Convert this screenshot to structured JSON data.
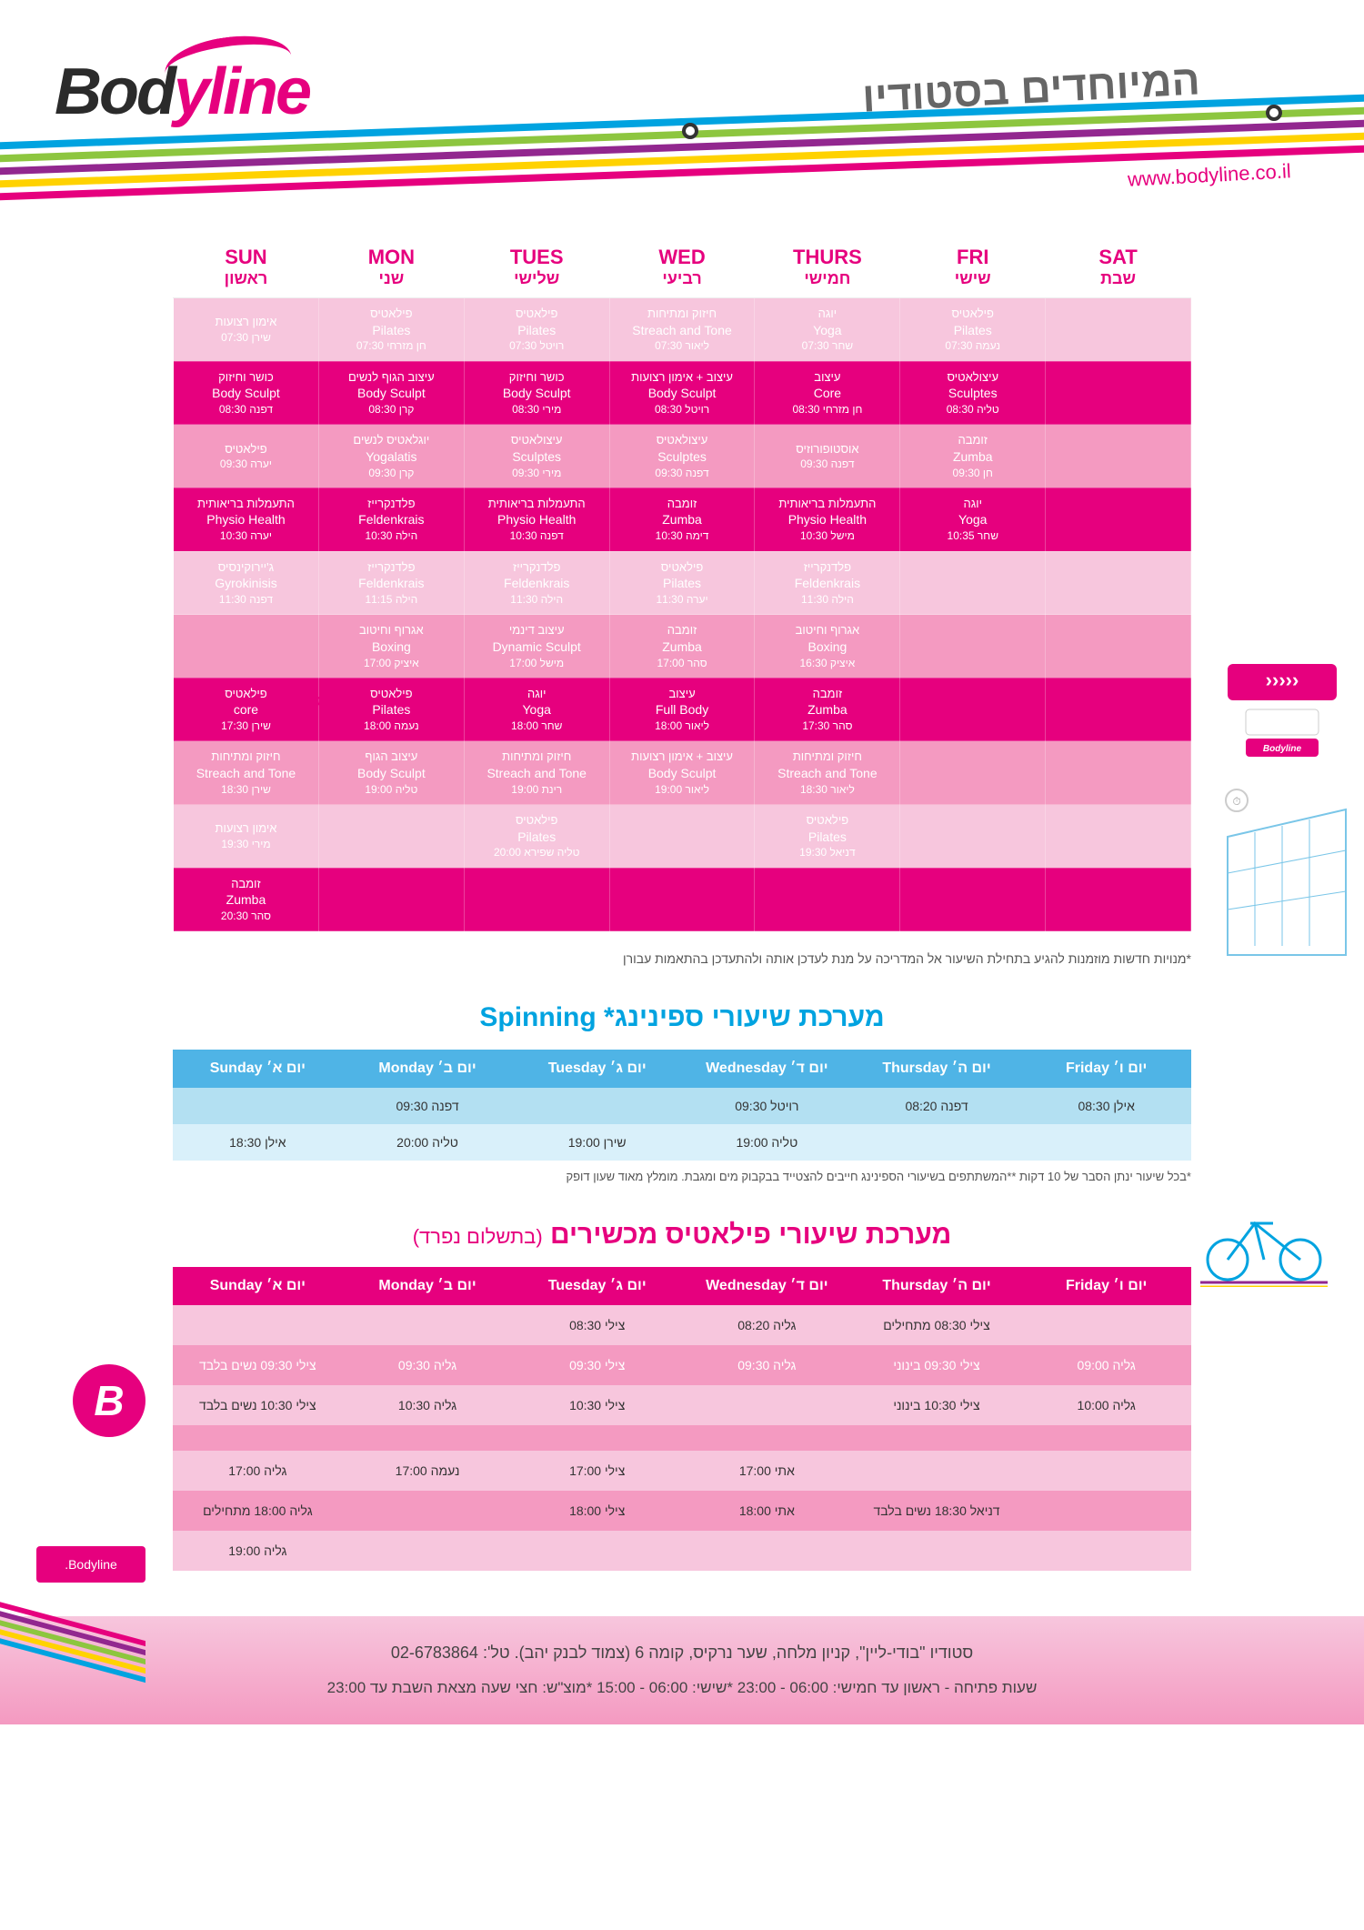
{
  "header": {
    "logo_text_1": "Bod",
    "logo_text_2": "yline",
    "title": "המיוחדים בסטודיו",
    "website": "www.bodyline.co.il",
    "stripe_colors": [
      "#00a3e0",
      "#8dc63f",
      "#92278f",
      "#ffd200",
      "#e6007e"
    ]
  },
  "schedule": {
    "days": [
      {
        "en": "SAT",
        "he": "שבת"
      },
      {
        "en": "FRI",
        "he": "שישי"
      },
      {
        "en": "THURS",
        "he": "חמישי"
      },
      {
        "en": "WED",
        "he": "רביעי"
      },
      {
        "en": "TUES",
        "he": "שלישי"
      },
      {
        "en": "MON",
        "he": "שני"
      },
      {
        "en": "SUN",
        "he": "ראשון"
      }
    ],
    "rows": [
      [
        null,
        {
          "a": "פילאטיס",
          "b": "Pilates",
          "c": "נעמה 07:30"
        },
        {
          "a": "יוגה",
          "b": "Yoga",
          "c": "שחר 07:30"
        },
        {
          "a": "חיזוק ומתיחות",
          "b": "Streach and Tone",
          "c": "ליאור 07:30"
        },
        {
          "a": "פילאטיס",
          "b": "Pilates",
          "c": "רויטל 07:30"
        },
        {
          "a": "פילאטיס",
          "b": "Pilates",
          "c": "חן מזרחי 07:30"
        },
        {
          "a": "אימון רצועות",
          "b": "",
          "c": "שירן 07:30"
        }
      ],
      [
        null,
        {
          "a": "עיצולאטיס",
          "b": "Sculptes",
          "c": "טליה 08:30"
        },
        {
          "a": "עיצוב",
          "b": "Core",
          "c": "חן מזרחי 08:30"
        },
        {
          "a": "עיצוב + אימון רצועות",
          "b": "Body Sculpt",
          "c": "רויטל 08:30"
        },
        {
          "a": "כושר וחיזוק",
          "b": "Body Sculpt",
          "c": "מירי 08:30"
        },
        {
          "a": "עיצוב הגוף לנשים",
          "b": "Body Sculpt",
          "c": "קרן 08:30"
        },
        {
          "a": "כושר וחיזוק",
          "b": "Body Sculpt",
          "c": "דפנה 08:30"
        }
      ],
      [
        null,
        {
          "a": "זומבה",
          "b": "Zumba",
          "c": "חן 09:30"
        },
        {
          "a": "אוסטופורוזיס",
          "b": "",
          "c": "דפנה 09:30"
        },
        {
          "a": "עיצולאטיס",
          "b": "Sculptes",
          "c": "דפנה 09:30"
        },
        {
          "a": "עיצולאטיס",
          "b": "Sculptes",
          "c": "מירי 09:30"
        },
        {
          "a": "יוגלאטיס לנשים",
          "b": "Yogalatis",
          "c": "קרן 09:30"
        },
        {
          "a": "פילאטיס",
          "b": "",
          "c": "יערה 09:30"
        }
      ],
      [
        null,
        {
          "a": "יוגה",
          "b": "Yoga",
          "c": "שחר 10:35"
        },
        {
          "a": "התעמלות בריאותית",
          "b": "Physio Health",
          "c": "מישל 10:30"
        },
        {
          "a": "זומבה",
          "b": "Zumba",
          "c": "דימה 10:30"
        },
        {
          "a": "התעמלות בריאותית",
          "b": "Physio Health",
          "c": "דפנה 10:30"
        },
        {
          "a": "פלדנקרייז",
          "b": "Feldenkrais",
          "c": "הילה 10:30"
        },
        {
          "a": "התעמלות בריאותית",
          "b": "Physio Health",
          "c": "יערה 10:30"
        }
      ],
      [
        null,
        null,
        {
          "a": "פלדנקרייז",
          "b": "Feldenkrais",
          "c": "הילה 11:30"
        },
        {
          "a": "פילאטיס",
          "b": "Pilates",
          "c": "יערה 11:30"
        },
        {
          "a": "פלדנקרייז",
          "b": "Feldenkrais",
          "c": "הילה 11:30"
        },
        {
          "a": "פלדנקרייז",
          "b": "Feldenkrais",
          "c": "הילה 11:15"
        },
        {
          "a": "ג'יירוקינסיס",
          "b": "Gyrokinisis",
          "c": "דפנה 11:30"
        }
      ],
      [
        null,
        null,
        {
          "a": "אגרוף וחיטוב",
          "b": "Boxing",
          "c": "איציק 16:30"
        },
        {
          "a": "זומבה",
          "b": "Zumba",
          "c": "סהר 17:00"
        },
        {
          "a": "עיצוב דינמי",
          "b": "Dynamic Sculpt",
          "c": "מישל 17:00"
        },
        {
          "a": "אגרוף וחיטוב",
          "b": "Boxing",
          "c": "איציק 17:00"
        },
        null
      ],
      [
        null,
        null,
        {
          "a": "זומבה",
          "b": "Zumba",
          "c": "סהר 17:30"
        },
        {
          "a": "עיצוב",
          "b": "Full Body",
          "c": "ליאור 18:00"
        },
        {
          "a": "יוגה",
          "b": "Yoga",
          "c": "שחר 18:00"
        },
        {
          "a": "פילאטיס",
          "b": "Pilates",
          "c": "נעמה 18:00"
        },
        {
          "a": "פילאטיס",
          "b": "core",
          "c": "שירן 17:30"
        }
      ],
      [
        null,
        null,
        {
          "a": "חיזוק ומתיחות",
          "b": "Streach and Tone",
          "c": "ליאור 18:30"
        },
        {
          "a": "עיצוב + אימון רצועות",
          "b": "Body Sculpt",
          "c": "ליאור 19:00"
        },
        {
          "a": "חיזוק ומתיחות",
          "b": "Streach and Tone",
          "c": "רינת 19:00"
        },
        {
          "a": "עיצוב הגוף",
          "b": "Body Sculpt",
          "c": "טליה 19:00"
        },
        {
          "a": "חיזוק ומתיחות",
          "b": "Streach and Tone",
          "c": "שירן 18:30"
        }
      ],
      [
        null,
        null,
        {
          "a": "פילאטיס",
          "b": "Pilates",
          "c": "דניאל 19:30"
        },
        null,
        {
          "a": "פילאטיס",
          "b": "Pilates",
          "c": "טליה שפירא 20:00"
        },
        null,
        {
          "a": "אימון רצועות",
          "b": "",
          "c": "מירי 19:30"
        }
      ],
      [
        null,
        null,
        null,
        null,
        null,
        null,
        {
          "a": "זומבה",
          "b": "Zumba",
          "c": "סהר 20:30"
        }
      ]
    ],
    "note": "*מנויות חדשות מוזמנות להגיע בתחילת השיעור אל המדריכה על מנת לעדכן אותה ולהתעדכן בהתאמות עבורן"
  },
  "spinning": {
    "title": "מערכת שיעורי ספינינג* Spinning",
    "days": [
      "יום ו׳ Friday",
      "יום ה׳ Thursday",
      "יום ד׳ Wednesday",
      "יום ג׳ Tuesday",
      "יום ב׳ Monday",
      "יום א׳ Sunday"
    ],
    "rows": [
      [
        "אילן 08:30",
        "דפנה 08:20",
        "רויטל 09:30",
        "",
        "דפנה 09:30",
        ""
      ],
      [
        "",
        "",
        "טליה 19:00",
        "שירן 19:00",
        "טליה 20:00",
        "אילן 18:30"
      ]
    ],
    "note": "*בכל שיעור ינתן הסבר של 10 דקות  **המשתתפים בשיעורי הספינינג חייבים להצטייד בבקבוק מים ומגבת. מומלץ מאוד שעון דופק"
  },
  "pilates": {
    "title_main": "מערכת שיעורי פילאטיס מכשירים",
    "title_sub": "(בתשלום נפרד)",
    "days": [
      "יום ו׳ Friday",
      "יום ה׳ Thursday",
      "יום ד׳ Wednesday",
      "יום ג׳ Tuesday",
      "יום ב׳ Monday",
      "יום א׳ Sunday"
    ],
    "rows": [
      [
        "",
        "צילי 08:30 מתחילים",
        "גליה 08:20",
        "צילי 08:30",
        "",
        ""
      ],
      [
        "גליה 09:00",
        "צילי 09:30 בינוני",
        "גליה 09:30",
        "צילי 09:30",
        "גליה 09:30",
        "צילי 09:30 נשים בלבד"
      ],
      [
        "גליה 10:00",
        "צילי 10:30 בינוני",
        "",
        "צילי 10:30",
        "גליה 10:30",
        "צילי 10:30 נשים בלבד"
      ],
      [
        "",
        "",
        "",
        "",
        "",
        ""
      ],
      [
        "",
        "",
        "אתי 17:00",
        "צילי 17:00",
        "נעמה 17:00",
        "גליה 17:00"
      ],
      [
        "",
        "דניאל 18:30 נשים בלבד",
        "אתי 18:00",
        "צילי 18:00",
        "",
        "גליה 18:00 מתחילים"
      ],
      [
        "",
        "",
        "",
        "",
        "",
        "גליה 19:00"
      ]
    ]
  },
  "footer": {
    "line1": "סטודיו \"בודי-ליין\", קניון מלחה, שער נרקיס, קומה 6 (צמוד לבנק יהב). טל': 02-6783864",
    "line2": "שעות פתיחה - ראשון עד חמישי: 06:00 - 23:00  *שישי: 06:00 - 15:00  *מוצ\"ש: חצי שעה מצאת השבת עד 23:00"
  },
  "mini_logo": {
    "a": "Bod",
    "b": "yline."
  }
}
